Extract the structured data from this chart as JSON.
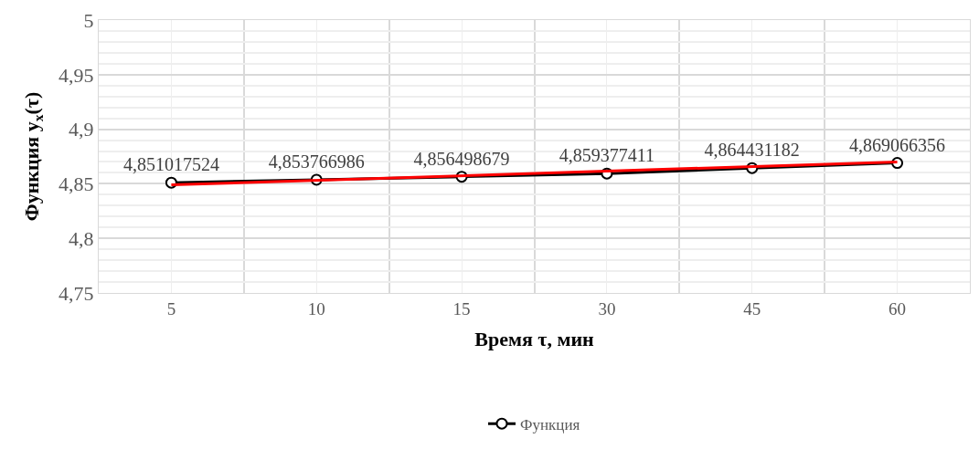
{
  "chart_data": {
    "type": "line",
    "xlabel": "Время τ, мин",
    "ylabel": "Функция y$_{x}$(τ)",
    "categories": [
      "5",
      "10",
      "15",
      "30",
      "45",
      "60"
    ],
    "series": [
      {
        "name": "Функция",
        "color": "#000000",
        "marker": "circle",
        "values": [
          4.851017524,
          4.853766986,
          4.856498679,
          4.859377411,
          4.864431182,
          4.869066356
        ],
        "value_labels": [
          "4,851017524",
          "4,853766986",
          "4,856498679",
          "4,859377411",
          "4,864431182",
          "4,869066356"
        ]
      },
      {
        "type": "line",
        "color": "#ff0000",
        "marker": "none",
        "x": [
          "5",
          "60"
        ],
        "values": [
          4.849,
          4.87
        ]
      }
    ],
    "ylim": [
      4.75,
      5
    ],
    "yticks": [
      {
        "value": 4.75,
        "label": "4,75"
      },
      {
        "value": 4.8,
        "label": "4,8"
      },
      {
        "value": 4.85,
        "label": "4,85"
      },
      {
        "value": 4.9,
        "label": "4,9"
      },
      {
        "value": 4.95,
        "label": "4,95"
      },
      {
        "value": 5,
        "label": "5"
      }
    ],
    "grid": true,
    "legend": "bottom"
  }
}
